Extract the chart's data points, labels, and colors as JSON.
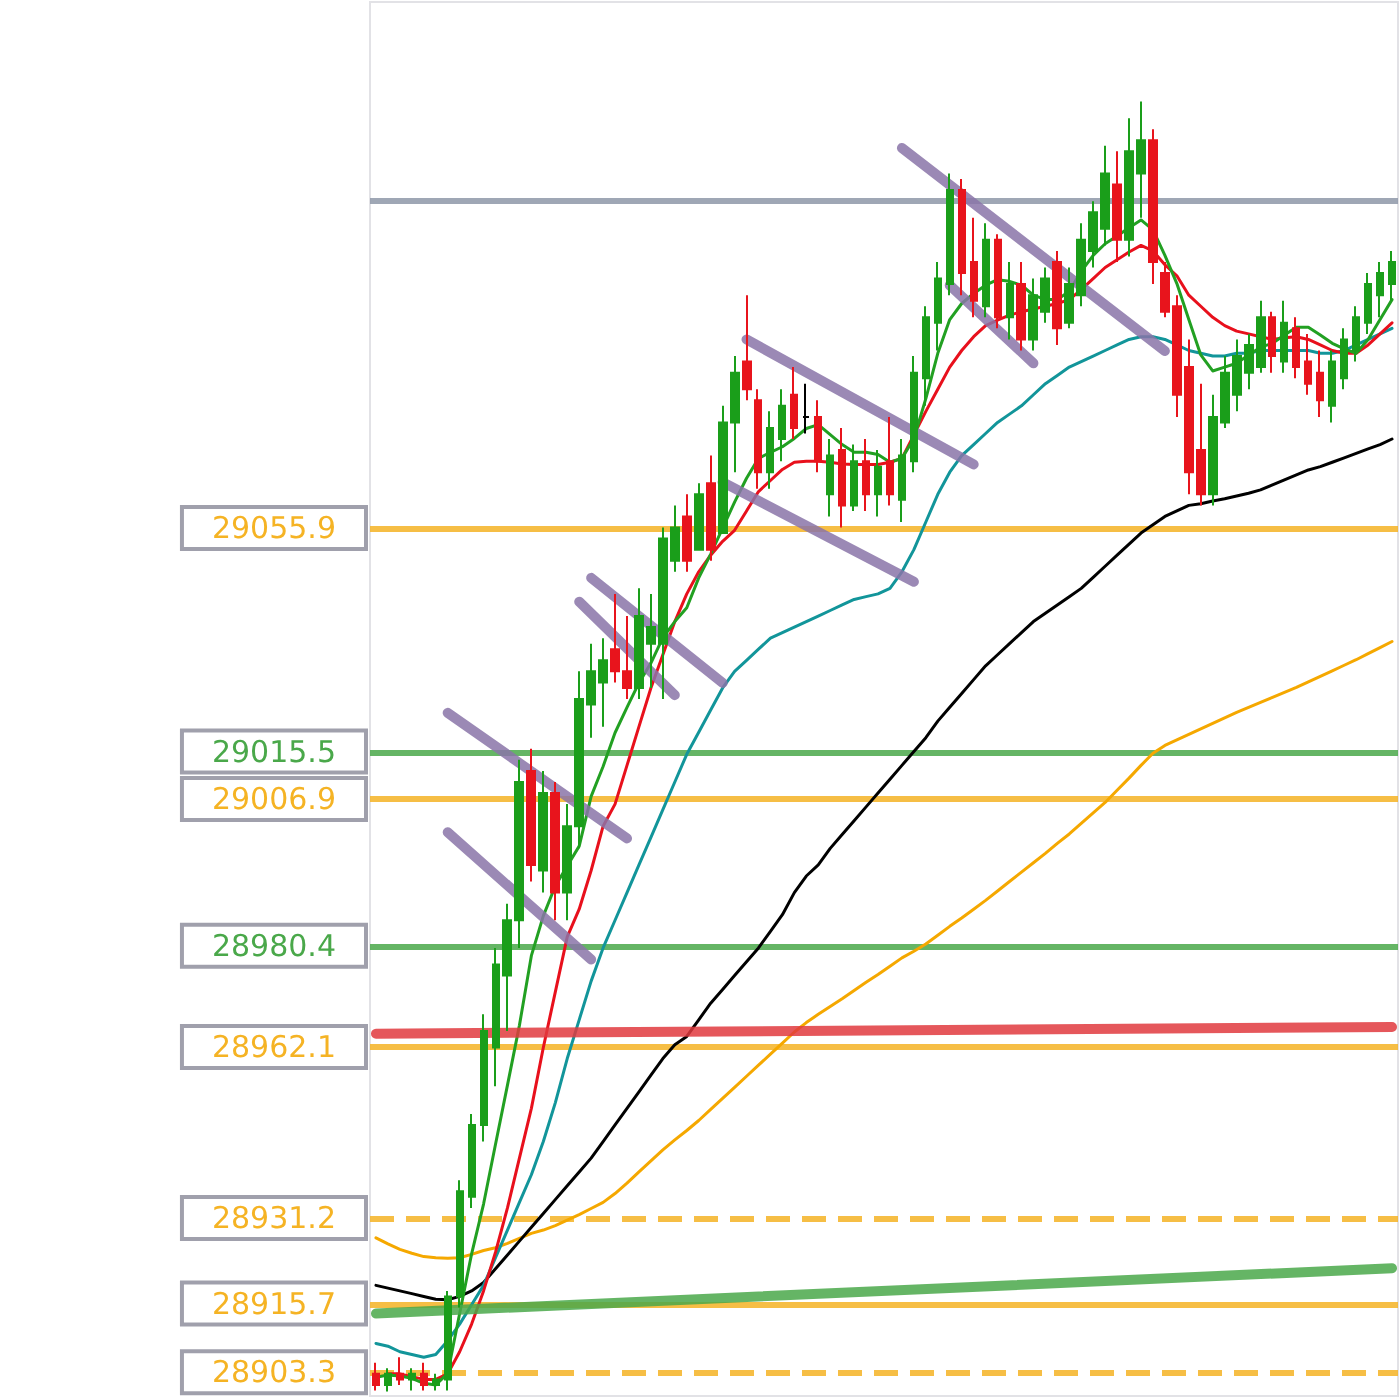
{
  "chart_data": {
    "type": "candlestick",
    "categories": [
      null,
      null,
      null,
      null,
      null,
      null,
      null,
      null,
      null,
      null,
      null,
      null,
      null,
      null,
      null,
      null,
      null,
      null,
      null,
      null,
      null,
      null,
      null,
      null,
      null,
      null,
      null,
      null,
      null,
      null,
      null,
      null,
      null,
      null,
      null,
      null,
      null,
      null,
      null,
      null,
      null,
      null,
      null,
      null,
      null,
      null,
      null,
      null,
      null,
      null,
      null,
      null,
      null,
      null,
      null,
      null,
      null,
      null,
      null,
      null,
      null,
      null,
      null,
      null,
      null,
      null,
      null,
      null,
      null,
      null,
      null,
      null,
      null,
      null,
      null,
      null,
      null,
      null,
      null,
      null,
      null,
      null,
      null,
      null,
      null,
      null
    ],
    "ohlc": [
      [
        28903,
        28905,
        28900,
        28901
      ],
      [
        28901,
        28904,
        28899.8,
        28903
      ],
      [
        28903,
        28906,
        28901,
        28902
      ],
      [
        28902,
        28904,
        28900,
        28903
      ],
      [
        28903,
        28905,
        28900,
        28901
      ],
      [
        28901,
        28903,
        28900,
        28902
      ],
      [
        28902,
        28918,
        28900,
        28917
      ],
      [
        28917,
        28938,
        28915,
        28936
      ],
      [
        28935,
        28950,
        28933,
        28948
      ],
      [
        28948,
        28968,
        28945,
        28965
      ],
      [
        28962,
        28980,
        28955,
        28977
      ],
      [
        28975,
        28988,
        28965,
        28985
      ],
      [
        28985,
        29014,
        28980,
        29010
      ],
      [
        29012,
        29016,
        28992,
        28995
      ],
      [
        28994,
        29012,
        28990,
        29008
      ],
      [
        29008,
        29010,
        28985,
        28990
      ],
      [
        28990,
        29006,
        28985,
        29002
      ],
      [
        29002,
        29030,
        28998,
        29025
      ],
      [
        29024,
        29035,
        29018,
        29030
      ],
      [
        29028,
        29036,
        29020,
        29032
      ],
      [
        29034,
        29044,
        29028,
        29030
      ],
      [
        29030,
        29040,
        29025,
        29027
      ],
      [
        29027,
        29045,
        29025,
        29040
      ],
      [
        29035,
        29044,
        29027,
        29038
      ],
      [
        29035,
        29056,
        29025,
        29054
      ],
      [
        29050,
        29060,
        29048,
        29056
      ],
      [
        29058,
        29062,
        29048,
        29050
      ],
      [
        29052,
        29064,
        29052,
        29062
      ],
      [
        29064,
        29069,
        29050,
        29052
      ],
      [
        29055,
        29078,
        29055,
        29075
      ],
      [
        29075,
        29087,
        29066,
        29084
      ],
      [
        29086,
        29098,
        29079,
        29081
      ],
      [
        29079,
        29081,
        29063,
        29066
      ],
      [
        29066,
        29077,
        29063,
        29074
      ],
      [
        29072,
        29081,
        29068,
        29078
      ],
      [
        29080,
        29085,
        29072,
        29074
      ],
      [
        29076,
        29082,
        29073,
        29076
      ],
      [
        29076,
        29079,
        29066,
        29068
      ],
      [
        29062,
        29072,
        29058,
        29069
      ],
      [
        29070,
        29074,
        29056,
        29060
      ],
      [
        29060,
        29071,
        29059,
        29068
      ],
      [
        29068,
        29072,
        29059,
        29062
      ],
      [
        29062,
        29070,
        29058,
        29067
      ],
      [
        29068,
        29076,
        29060,
        29062
      ],
      [
        29061,
        29072,
        29057,
        29069
      ],
      [
        29068,
        29087,
        29066,
        29084
      ],
      [
        29083,
        29096,
        29078,
        29094
      ],
      [
        29093,
        29104,
        29088,
        29101
      ],
      [
        29100,
        29120,
        29098,
        29117
      ],
      [
        29117,
        29119,
        29098,
        29102
      ],
      [
        29104,
        29112,
        29094,
        29097
      ],
      [
        29096,
        29111,
        29094,
        29108
      ],
      [
        29108,
        29109,
        29092,
        29094
      ],
      [
        29094,
        29104,
        29090,
        29100
      ],
      [
        29100,
        29104,
        29088,
        29090
      ],
      [
        29090,
        29101,
        29088,
        29098
      ],
      [
        29095,
        29103,
        29093,
        29101
      ],
      [
        29104,
        29106,
        29089,
        29092
      ],
      [
        29093,
        29103,
        29092,
        29100
      ],
      [
        29098,
        29111,
        29096,
        29108
      ],
      [
        29106,
        29115,
        29103,
        29113
      ],
      [
        29110,
        29125,
        29107,
        29120
      ],
      [
        29118,
        29124,
        29104,
        29108
      ],
      [
        29108,
        29130,
        29105,
        29124
      ],
      [
        29120,
        29133,
        29112,
        29126
      ],
      [
        29126,
        29128,
        29100,
        29104
      ],
      [
        29102,
        29104,
        29094,
        29095
      ],
      [
        29096,
        29098,
        29076,
        29080
      ],
      [
        29085,
        29090,
        29062,
        29066
      ],
      [
        29070,
        29082,
        29060,
        29062
      ],
      [
        29062,
        29080,
        29060,
        29076
      ],
      [
        29075,
        29087,
        29074,
        29084
      ],
      [
        29080,
        29090,
        29077,
        29087
      ],
      [
        29084,
        29091,
        29081,
        29089
      ],
      [
        29085,
        29097,
        29084,
        29094
      ],
      [
        29094,
        29095,
        29084,
        29087
      ],
      [
        29086,
        29097,
        29084,
        29093
      ],
      [
        29092,
        29094,
        29083,
        29085
      ],
      [
        29086,
        29091,
        29080,
        29082
      ],
      [
        29084,
        29088,
        29076,
        29079
      ],
      [
        29078,
        29088,
        29075,
        29086
      ],
      [
        29083,
        29092,
        29081,
        29090
      ],
      [
        29088,
        29096,
        29086,
        29094
      ],
      [
        29093,
        29102,
        29091,
        29100
      ],
      [
        29098,
        29104,
        29094,
        29102
      ],
      [
        29100,
        29106,
        29097,
        29104
      ]
    ],
    "series": [
      {
        "type": "line",
        "color": "#f5a800",
        "values": [
          28927.6,
          28926.5,
          28925.5,
          28924.8,
          28924.2,
          28924,
          28923.9,
          28924,
          28924.6,
          28925.3,
          28925.8,
          28926.6,
          28927.5,
          28928.4,
          28929,
          28929.8,
          28930.8,
          28931.8,
          28932.9,
          28934,
          28935.6,
          28937.5,
          28939.5,
          28941.5,
          28943.5,
          28945.3,
          28947,
          28948.8,
          28950.8,
          28952.8,
          28954.8,
          28956.8,
          28958.8,
          28960.8,
          28962.8,
          28964.8,
          28966.5,
          28968,
          28969.4,
          28970.8,
          28972.3,
          28973.8,
          28975.2,
          28976.7,
          28978.2,
          28979.4,
          28980.7,
          28982.3,
          28983.9,
          28985.4,
          28987,
          28988.6,
          28990.3,
          28992,
          28993.7,
          28995.4,
          28997.1,
          28998.9,
          29000.6,
          29002.5,
          29004.4,
          29006.3,
          29008.5,
          29010.7,
          29013,
          29015.2,
          29016.6,
          29017.6,
          29018.6,
          29019.6,
          29020.6,
          29021.6,
          29022.6,
          29023.5,
          29024.4,
          29025.3,
          29026.2,
          29027.1,
          29028.1,
          29029.1,
          29030.1,
          29031.1,
          29032.1,
          29033.2,
          29034.3,
          29035.4
        ]
      },
      {
        "type": "line",
        "color": "#000000",
        "values": [
          28919,
          28918.5,
          28918,
          28917.5,
          28917,
          28916.5,
          28916.4,
          28917,
          28918,
          28919.5,
          28922,
          28924.5,
          28927,
          28929.5,
          28932,
          28934.5,
          28937,
          28939.5,
          28942,
          28945,
          28948,
          28951,
          28954,
          28957,
          28960,
          28962.5,
          28964,
          28967,
          28970,
          28972.5,
          28975,
          28977.5,
          28980,
          28983,
          28986,
          28990,
          28993,
          28995,
          28998,
          29000.5,
          29003,
          29005.5,
          29008,
          29010.5,
          29013,
          29015.5,
          29018,
          29021,
          29023.5,
          29026,
          29028.5,
          29031,
          29033,
          29035,
          29037,
          29039,
          29040.5,
          29042,
          29043.5,
          29045,
          29047,
          29049,
          29051,
          29053,
          29055,
          29056.5,
          29058,
          29059,
          29060,
          29060.3,
          29060.8,
          29061.2,
          29061.7,
          29062.2,
          29062.8,
          29063.7,
          29064.6,
          29065.5,
          29066.4,
          29067,
          29067.8,
          29068.6,
          29069.4,
          29070.2,
          29071,
          29072
        ]
      },
      {
        "type": "line",
        "color": "#12959a",
        "values": [
          28908.5,
          28908,
          28907,
          28906.5,
          28906,
          28906.5,
          28909,
          28912,
          28915.5,
          28919,
          28924,
          28929,
          28934,
          28939,
          28945,
          28952,
          28960,
          28967,
          28974,
          28980,
          28985,
          28990,
          28995,
          29000,
          29005,
          29010,
          29015,
          29019,
          29023,
          29027,
          29030,
          29032,
          29034,
          29036,
          29037,
          29038,
          29039,
          29040,
          29041,
          29042,
          29043,
          29043.5,
          29044,
          29045,
          29048,
          29052,
          29057,
          29062,
          29066,
          29069,
          29071,
          29073,
          29075,
          29076.5,
          29078,
          29080,
          29082,
          29083.5,
          29085,
          29086,
          29087,
          29088,
          29089,
          29090,
          29090.5,
          29090.5,
          29090,
          29089,
          29088,
          29087.5,
          29087,
          29087,
          29087.5,
          29087.5,
          29088,
          29088,
          29088,
          29088,
          29088,
          29087.5,
          29087.5,
          29088,
          29089,
          29090,
          29091,
          29092
        ]
      },
      {
        "type": "line",
        "color": "#e8101c",
        "values": [
          null,
          28903,
          28903,
          28902.5,
          28902,
          28902,
          28903,
          28907,
          28912,
          28918,
          28925,
          28933,
          28942,
          28951,
          28962,
          28972,
          28982,
          28987,
          28994,
          29002,
          29006,
          29013,
          29020,
          29027,
          29033,
          29039,
          29044,
          29048,
          29051,
          29053.5,
          29055.5,
          29059,
          29062.5,
          29064.5,
          29066.5,
          29067.8,
          29068,
          29068,
          29067.8,
          29067.5,
          29067.4,
          29067.4,
          29067.4,
          29067.8,
          29068.5,
          null,
          29077,
          29081,
          29085,
          29088,
          29090.5,
          29092.5,
          29093.5,
          29094.4,
          29095,
          29095.5,
          29096,
          29096.5,
          29097.2,
          29099,
          29101,
          29103,
          29104.4,
          29105.8,
          29107,
          29106,
          29103.5,
          29101.5,
          29098,
          29096,
          29094,
          29092.5,
          29091.5,
          29091,
          29090.5,
          29090,
          29090.3,
          29090.5,
          29090,
          29089,
          29088,
          29087.5,
          29087.5,
          29089,
          29091,
          29093
        ]
      },
      {
        "type": "line",
        "color": "#22a022",
        "values": [
          28902.4,
          28902.8,
          28902.6,
          28902.2,
          28901.3,
          28901,
          28903.1,
          28913.9,
          28924.7,
          28933.7,
          28944.5,
          28955.2,
          28966,
          28978.6,
          28985.8,
          28991.2,
          28994.8,
          28998.4,
          29007.4,
          29012.8,
          29018.9,
          29023.5,
          29027.9,
          29031.5,
          29036.1,
          29039,
          29041.5,
          29046.9,
          29051.2,
          29055.9,
          29060.6,
          29064.9,
          29068.5,
          29069.6,
          29070.6,
          29072.1,
          29073.9,
          29074.6,
          29072.8,
          29071,
          29069.6,
          29069.6,
          29069.2,
          29067.8,
          29068.5,
          29072.1,
          29079.3,
          29087.5,
          29093.6,
          29096.5,
          29098.3,
          29099.8,
          29100.8,
          29100.5,
          29099.8,
          29098,
          29097.2,
          29097.2,
          29098.7,
          29102.3,
          29105.2,
          29107.3,
          29108.7,
          29110.2,
          29111.6,
          29109.8,
          29105.2,
          29100.1,
          29093.6,
          29087.2,
          29084.3,
          29085,
          29085.7,
          29087.2,
          29088.6,
          29089.3,
          29090.8,
          29092.2,
          29092.2,
          29090.8,
          29089.3,
          29088.3,
          29087.5,
          29090,
          29093.6,
          29097.2
        ]
      },
      {
        "type": "line",
        "color": "#e0393e",
        "values": [
          28964.5,
          null,
          null,
          null,
          null,
          null,
          null,
          null,
          null,
          null,
          null,
          null,
          null,
          null,
          null,
          null,
          null,
          null,
          null,
          null,
          null,
          null,
          null,
          null,
          null,
          null,
          null,
          null,
          null,
          null,
          null,
          null,
          null,
          null,
          null,
          null,
          null,
          null,
          null,
          null,
          null,
          null,
          null,
          null,
          null,
          null,
          null,
          null,
          null,
          null,
          null,
          null,
          null,
          null,
          null,
          null,
          null,
          null,
          null,
          null,
          null,
          null,
          null,
          null,
          null,
          null,
          null,
          null,
          null,
          null,
          null,
          null,
          null,
          null,
          null,
          null,
          null,
          null,
          null,
          null,
          null,
          null,
          null,
          null,
          null,
          28965.7
        ]
      },
      {
        "type": "line",
        "color": "#4aa84a",
        "values": [
          28913.9,
          null,
          null,
          null,
          null,
          null,
          null,
          null,
          null,
          null,
          null,
          null,
          null,
          null,
          null,
          null,
          null,
          null,
          null,
          null,
          null,
          null,
          null,
          null,
          null,
          null,
          null,
          null,
          null,
          null,
          null,
          null,
          null,
          null,
          null,
          null,
          null,
          null,
          null,
          null,
          null,
          null,
          null,
          null,
          null,
          null,
          null,
          null,
          null,
          null,
          null,
          null,
          null,
          null,
          null,
          null,
          null,
          null,
          null,
          null,
          null,
          null,
          null,
          null,
          null,
          null,
          null,
          null,
          null,
          null,
          null,
          null,
          null,
          null,
          null,
          null,
          null,
          null,
          null,
          null,
          null,
          null,
          null,
          null,
          null,
          28922.1
        ]
      },
      {
        "type": "line",
        "color": "#8a74a8",
        "values": [
          null,
          null,
          null,
          null,
          null,
          null,
          29022.5,
          null,
          null,
          null,
          null,
          null,
          null,
          null,
          null,
          null,
          null,
          null,
          null,
          null,
          null,
          28999.8,
          null,
          null,
          null,
          null,
          null,
          null,
          null,
          null,
          null,
          null,
          null,
          null,
          null,
          null,
          null,
          null,
          null,
          null,
          null,
          null,
          null,
          null,
          null,
          null,
          null,
          null,
          null,
          null,
          null,
          null,
          null,
          null,
          null,
          null,
          null,
          null,
          null,
          null,
          null,
          null,
          null,
          null,
          null,
          null,
          null,
          null,
          null,
          null,
          null,
          null,
          null,
          null,
          null,
          null,
          null,
          null,
          null,
          null,
          null,
          null,
          null,
          null,
          null,
          null
        ]
      },
      {
        "type": "line",
        "color": "#8a74a8",
        "values": [
          null,
          null,
          null,
          null,
          null,
          null,
          29000.9,
          null,
          null,
          null,
          null,
          null,
          null,
          null,
          null,
          null,
          null,
          null,
          28977.9,
          null,
          null,
          null,
          null,
          null,
          null,
          null,
          null,
          null,
          null,
          null,
          null,
          null,
          null,
          null,
          null,
          null,
          null,
          null,
          null,
          null,
          null,
          null,
          null,
          null,
          null,
          null,
          null,
          null,
          null,
          null,
          null,
          null,
          null,
          null,
          null,
          null,
          null,
          null,
          null,
          null,
          null,
          null,
          null,
          null,
          null,
          null,
          null,
          null,
          null,
          null,
          null,
          null,
          null,
          null,
          null,
          null,
          null,
          null,
          null,
          null,
          null,
          null,
          null,
          null,
          null,
          null
        ]
      },
      {
        "type": "line",
        "color": "#8a74a8",
        "values": [
          null,
          null,
          null,
          null,
          null,
          null,
          null,
          null,
          null,
          null,
          null,
          null,
          null,
          null,
          null,
          null,
          null,
          null,
          29046.9,
          null,
          null,
          null,
          null,
          null,
          null,
          null,
          null,
          null,
          null,
          29027.9,
          null,
          null,
          null,
          null,
          null,
          null,
          null,
          null,
          null,
          null,
          null,
          null,
          null,
          null,
          null,
          null,
          null,
          null,
          null,
          null,
          null,
          null,
          null,
          null,
          null,
          null,
          null,
          null,
          null,
          null,
          null,
          null,
          null,
          null,
          null,
          null,
          null,
          null,
          null,
          null,
          null,
          null,
          null,
          null,
          null,
          null,
          null,
          null,
          null,
          null,
          null,
          null,
          null,
          null,
          null,
          null
        ]
      },
      {
        "type": "line",
        "color": "#8a74a8",
        "values": [
          null,
          null,
          null,
          null,
          null,
          null,
          null,
          null,
          null,
          null,
          null,
          null,
          null,
          null,
          null,
          null,
          null,
          29042.6,
          null,
          null,
          null,
          null,
          null,
          null,
          null,
          29025.7,
          null,
          null,
          null,
          null,
          null,
          null,
          null,
          null,
          null,
          null,
          null,
          null,
          null,
          null,
          null,
          null,
          null,
          null,
          null,
          null,
          null,
          null,
          null,
          null,
          null,
          null,
          null,
          null,
          null,
          null,
          null,
          null,
          null,
          null,
          null,
          null,
          null,
          null,
          null,
          null,
          null,
          null,
          null,
          null,
          null,
          null,
          null,
          null,
          null,
          null,
          null,
          null,
          null,
          null,
          null,
          null,
          null,
          null,
          null,
          null
        ]
      },
      {
        "type": "line",
        "color": "#8a74a8",
        "values": [
          null,
          null,
          null,
          null,
          null,
          null,
          null,
          null,
          null,
          null,
          null,
          null,
          null,
          null,
          null,
          null,
          null,
          null,
          null,
          null,
          null,
          null,
          null,
          null,
          null,
          null,
          null,
          null,
          null,
          null,
          null,
          29090,
          null,
          null,
          null,
          null,
          null,
          null,
          null,
          null,
          null,
          null,
          null,
          null,
          null,
          null,
          null,
          null,
          null,
          null,
          29067.4,
          null,
          null,
          null,
          null,
          null,
          null,
          null,
          null,
          null,
          null,
          null,
          null,
          null,
          null,
          null,
          null,
          null,
          null,
          null,
          null,
          null,
          null,
          null,
          null,
          null,
          null,
          null,
          null,
          null,
          null,
          null,
          null,
          null,
          null,
          null
        ]
      },
      {
        "type": "line",
        "color": "#8a74a8",
        "values": [
          null,
          null,
          null,
          null,
          null,
          null,
          null,
          null,
          null,
          null,
          null,
          null,
          null,
          null,
          null,
          null,
          null,
          null,
          null,
          null,
          null,
          null,
          null,
          null,
          null,
          null,
          null,
          null,
          null,
          29064.2,
          null,
          null,
          null,
          null,
          null,
          null,
          null,
          null,
          null,
          null,
          null,
          null,
          null,
          null,
          null,
          29046.2,
          null,
          null,
          null,
          null,
          null,
          null,
          null,
          null,
          null,
          null,
          null,
          null,
          null,
          null,
          null,
          null,
          null,
          null,
          null,
          null,
          null,
          null,
          null,
          null,
          null,
          null,
          null,
          null,
          null,
          null,
          null,
          null,
          null,
          null,
          null,
          null,
          null,
          null,
          null,
          null
        ]
      },
      {
        "type": "line",
        "color": "#8a74a8",
        "values": [
          null,
          null,
          null,
          null,
          null,
          null,
          null,
          null,
          null,
          null,
          null,
          null,
          null,
          null,
          null,
          null,
          null,
          null,
          null,
          null,
          null,
          null,
          null,
          null,
          null,
          null,
          null,
          null,
          null,
          null,
          null,
          null,
          null,
          null,
          null,
          null,
          null,
          null,
          null,
          null,
          null,
          null,
          null,
          null,
          29124.6,
          null,
          null,
          null,
          null,
          null,
          null,
          null,
          null,
          null,
          null,
          null,
          null,
          null,
          null,
          null,
          null,
          null,
          null,
          null,
          null,
          null,
          29087.9,
          null,
          null,
          null,
          null,
          null,
          null,
          null,
          null,
          null,
          null,
          null,
          null,
          null,
          null,
          null,
          null,
          null,
          null,
          null
        ]
      },
      {
        "type": "line",
        "color": "#8a74a8",
        "values": [
          null,
          null,
          null,
          null,
          null,
          null,
          null,
          null,
          null,
          null,
          null,
          null,
          null,
          null,
          null,
          null,
          null,
          null,
          null,
          null,
          null,
          null,
          null,
          null,
          null,
          null,
          null,
          null,
          null,
          null,
          null,
          null,
          null,
          null,
          null,
          null,
          null,
          null,
          null,
          null,
          null,
          null,
          null,
          null,
          null,
          null,
          null,
          null,
          29099.8,
          null,
          null,
          null,
          null,
          null,
          null,
          29085.7,
          null,
          null,
          null,
          null,
          null,
          null,
          null,
          null,
          null,
          null,
          null,
          null,
          null,
          null,
          null,
          null,
          null,
          null,
          null,
          null,
          null,
          null,
          null,
          null,
          null,
          null,
          null,
          null,
          null,
          null
        ]
      }
    ],
    "ref_lines": [
      {
        "axis": "y",
        "value": 29115.2,
        "label": null,
        "color": "#8e98a8"
      },
      {
        "axis": "y",
        "value": 29055.9,
        "label": null,
        "color": "#f5b324"
      },
      {
        "axis": "y",
        "value": 29015.5,
        "label": null,
        "color": "#4aa84a"
      },
      {
        "axis": "y",
        "value": 29006.9,
        "label": null,
        "color": "#f5b324"
      },
      {
        "axis": "y",
        "value": 28980.4,
        "label": null,
        "color": "#4aa84a"
      },
      {
        "axis": "y",
        "value": 28962.1,
        "label": null,
        "color": "#f5b324"
      },
      {
        "axis": "y",
        "value": 28931.2,
        "label": null,
        "color": "#f5b324",
        "line_style": "dashed"
      },
      {
        "axis": "y",
        "value": 28915.7,
        "label": null,
        "color": "#f5b324"
      },
      {
        "axis": "y",
        "value": 28903.3,
        "label": null,
        "color": "#f5b324",
        "line_style": "dashed"
      }
    ],
    "ylim": [
      28899,
      29151
    ],
    "yticks": [
      28903.3,
      28915.7,
      28931.2,
      28962.1,
      28980.4,
      29006.9,
      29015.5,
      29055.9
    ],
    "tick_labels": "y"
  }
}
